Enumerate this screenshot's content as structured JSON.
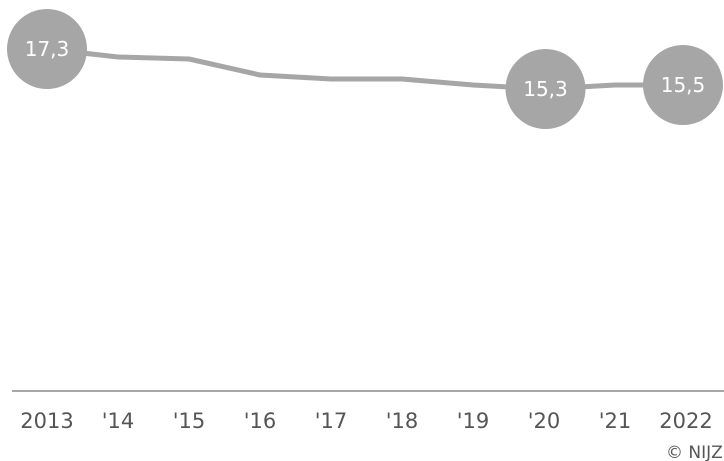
{
  "chart_data": {
    "type": "line",
    "title": "",
    "xlabel": "",
    "ylabel": "",
    "categories": [
      "2013",
      "'14",
      "'15",
      "'16",
      "'17",
      "'18",
      "'19",
      "'20",
      "'21",
      "2022"
    ],
    "series": [
      {
        "values": [
          17.3,
          16.9,
          16.8,
          16.0,
          15.8,
          15.8,
          15.5,
          15.3,
          15.5,
          15.5
        ]
      }
    ],
    "highlighted_labels": [
      {
        "index": 0,
        "text": "17,3"
      },
      {
        "index": 7,
        "text": "15,3"
      },
      {
        "index": 9,
        "text": "15,5"
      }
    ],
    "ylim": [
      0,
      20
    ],
    "grid": false,
    "legend": "none",
    "colors": {
      "line": "#a6a6a6",
      "marker": "#a6a6a6",
      "axis": "#8c8c8c",
      "text": "#555555",
      "label_text": "#ffffff"
    }
  },
  "credit": "© NIJZ"
}
